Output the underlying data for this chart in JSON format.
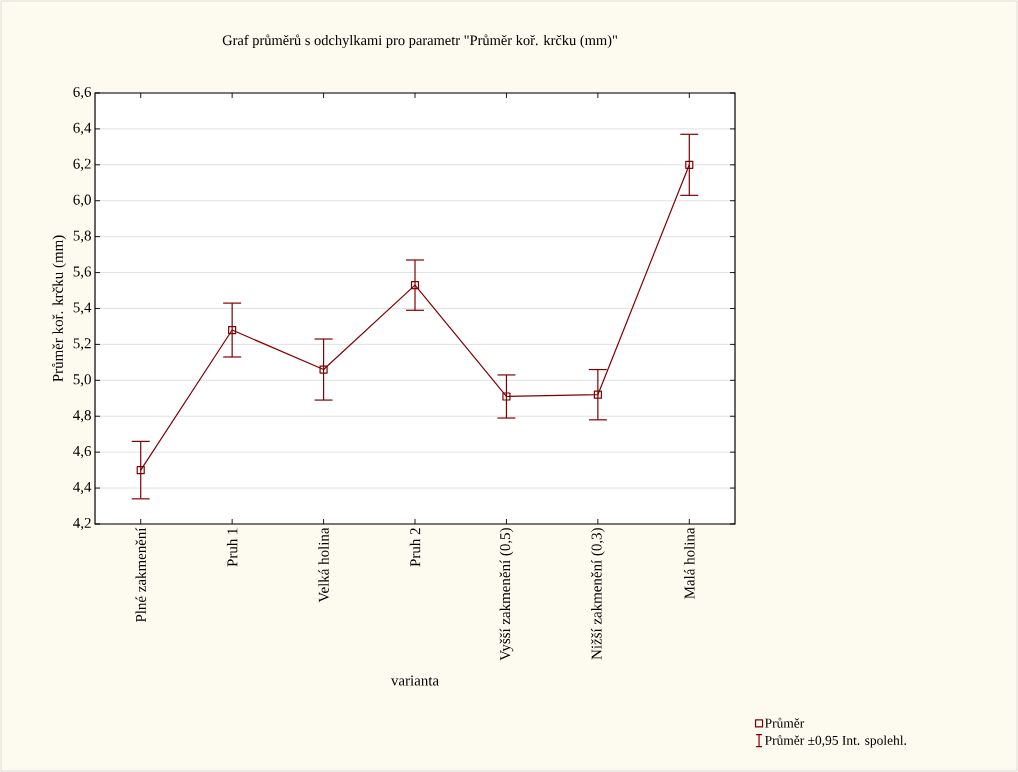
{
  "chart_data": {
    "type": "line",
    "title": "Graf průměrů s odchylkami pro parametr \"Průměr koř. krčku (mm)\"",
    "xlabel": "varianta",
    "ylabel": "Průměr koř. krčku (mm)",
    "categories": [
      "Plné zakmenění",
      "Pruh 1",
      "Velká holina",
      "Pruh 2",
      "Vyšší zakmenění (0,5)",
      "Nižší zakmenění (0,3)",
      "Malá holina"
    ],
    "series": [
      {
        "name": "Průměr",
        "color": "#800000",
        "values": [
          4.5,
          5.28,
          5.06,
          5.53,
          4.91,
          4.92,
          6.2
        ],
        "errors": [
          0.16,
          0.15,
          0.17,
          0.14,
          0.12,
          0.14,
          0.17
        ]
      }
    ],
    "ylim": [
      4.2,
      6.6
    ],
    "yticks": [
      {
        "value": 4.2,
        "label": "4,2"
      },
      {
        "value": 4.4,
        "label": "4,4"
      },
      {
        "value": 4.6,
        "label": "4,6"
      },
      {
        "value": 4.8,
        "label": "4,8"
      },
      {
        "value": 5.0,
        "label": "5,0"
      },
      {
        "value": 5.2,
        "label": "5,2"
      },
      {
        "value": 5.4,
        "label": "5,4"
      },
      {
        "value": 5.6,
        "label": "5,6"
      },
      {
        "value": 5.8,
        "label": "5,8"
      },
      {
        "value": 6.0,
        "label": "6,0"
      },
      {
        "value": 6.2,
        "label": "6,2"
      },
      {
        "value": 6.4,
        "label": "6,4"
      },
      {
        "value": 6.6,
        "label": "6,6"
      }
    ],
    "grid": "y",
    "legend": "bottom right",
    "marker": "square",
    "line_style": "solid",
    "annotations": [
      "Průměr ±0,95 Int. spolehl."
    ]
  }
}
